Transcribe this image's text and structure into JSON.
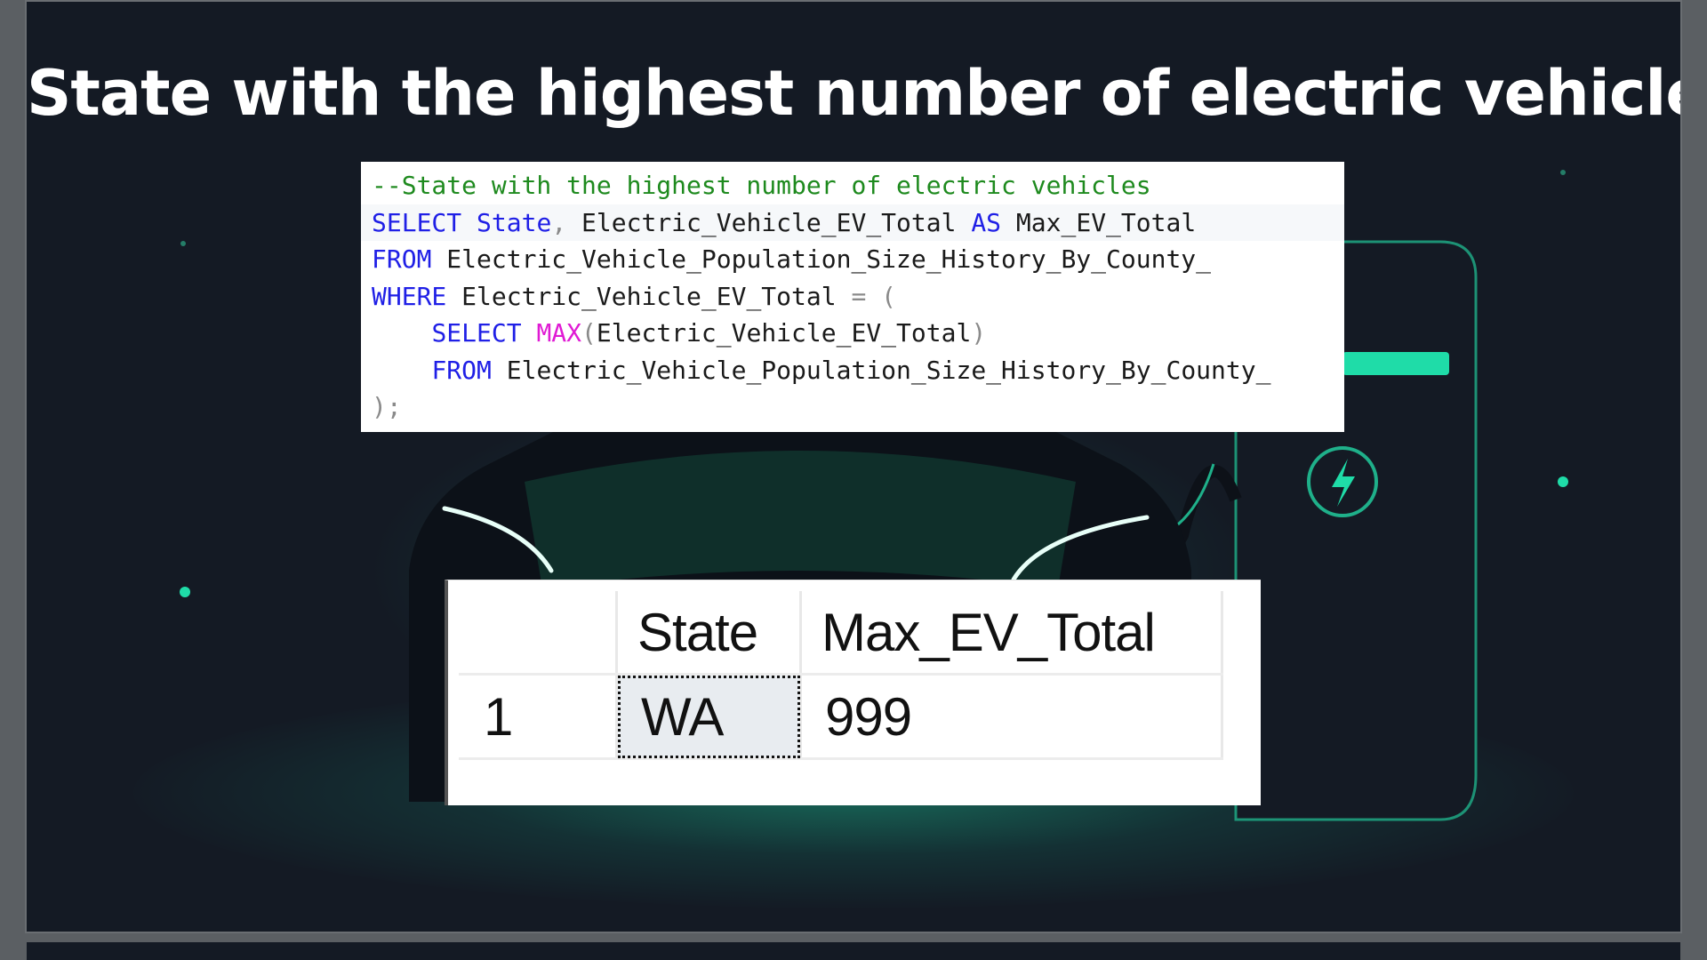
{
  "title": "State with the highest number of electric vehicles",
  "code": {
    "comment": "--State with the highest number of electric vehicles",
    "line2": {
      "kw1": "SELECT",
      "col": "State",
      "comma": ",",
      "expr": "Electric_Vehicle_EV_Total",
      "kw2": "AS",
      "alias": "Max_EV_Total"
    },
    "line3": {
      "kw": "FROM",
      "table": "Electric_Vehicle_Population_Size_History_By_County_"
    },
    "line4": {
      "kw": "WHERE",
      "expr": "Electric_Vehicle_EV_Total",
      "op": "= ("
    },
    "line5": {
      "kw": "SELECT",
      "fn": "MAX",
      "open": "(",
      "arg": "Electric_Vehicle_EV_Total",
      "close": ")"
    },
    "line6": {
      "kw": "FROM",
      "table": "Electric_Vehicle_Population_Size_History_By_County_"
    },
    "line7": {
      "end": ");"
    }
  },
  "results": {
    "columns": [
      "",
      "State",
      "Max_EV_Total"
    ],
    "rows": [
      {
        "num": "1",
        "state": "WA",
        "max_ev_total": "999"
      }
    ]
  },
  "colors": {
    "background": "#141a24",
    "accent_glow": "#1bd2a0",
    "keyword": "#1f1fe6",
    "function": "#e01ad4",
    "comment": "#1e8a1e"
  }
}
